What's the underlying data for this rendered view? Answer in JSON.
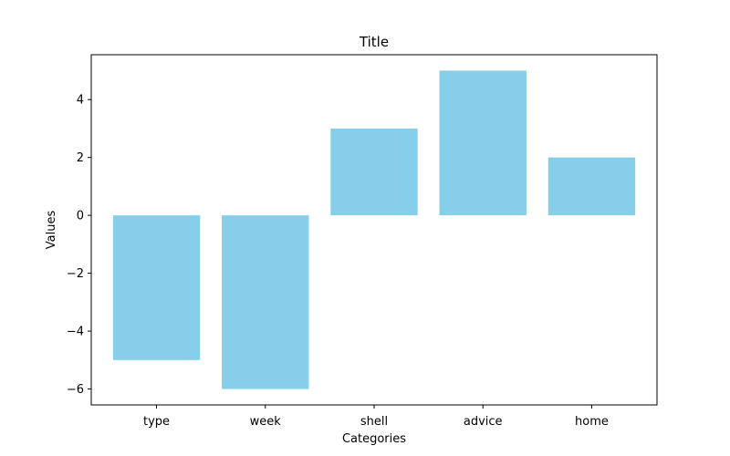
{
  "chart_data": {
    "type": "bar",
    "title": "Title",
    "xlabel": "Categories",
    "ylabel": "Values",
    "categories": [
      "type",
      "week",
      "shell",
      "advice",
      "home"
    ],
    "values": [
      -5,
      -6,
      3,
      5,
      2
    ],
    "ylim": [
      -6.55,
      5.55
    ],
    "yticks": [
      -6,
      -4,
      -2,
      0,
      2,
      4
    ],
    "ytick_labels": [
      "−6",
      "−4",
      "−2",
      "0",
      "2",
      "4"
    ],
    "grid": false,
    "legend": "none",
    "bar_color": "#87ceeb"
  }
}
